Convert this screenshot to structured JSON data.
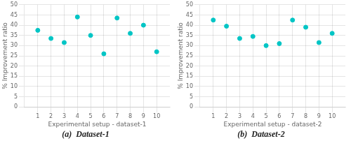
{
  "chart_data": [
    {
      "type": "scatter",
      "title": "(a)  Dataset-1",
      "xlabel": "Experimental setup - dataset-1",
      "ylabel": "% Improvement ratio",
      "x": [
        1,
        2,
        3,
        4,
        5,
        6,
        7,
        8,
        9,
        10
      ],
      "values": [
        37.5,
        33.5,
        31.5,
        44,
        35,
        26,
        43.5,
        36,
        40,
        27
      ],
      "color": "#00C5C5",
      "xlim": [
        0,
        11
      ],
      "ylim": [
        0,
        50
      ],
      "xticks": [
        1,
        2,
        3,
        4,
        5,
        6,
        7,
        8,
        9,
        10
      ],
      "yticks": [
        0,
        5,
        10,
        15,
        20,
        25,
        30,
        35,
        40,
        45,
        50
      ],
      "grid": true
    },
    {
      "type": "scatter",
      "title": "(b)  Dataset-2",
      "xlabel": "Experimental setup - dataset-2",
      "ylabel": "% Improvement ratio",
      "x": [
        1,
        2,
        3,
        4,
        5,
        6,
        7,
        8,
        9,
        10
      ],
      "values": [
        42.5,
        39.5,
        33.5,
        34.5,
        30,
        31,
        42.5,
        39,
        31.5,
        36
      ],
      "color": "#00C5C5",
      "xlim": [
        0,
        11
      ],
      "ylim": [
        0,
        50
      ],
      "xticks": [
        1,
        2,
        3,
        4,
        5,
        6,
        7,
        8,
        9,
        10
      ],
      "yticks": [
        0,
        5,
        10,
        15,
        20,
        25,
        30,
        35,
        40,
        45,
        50
      ],
      "grid": true
    }
  ]
}
